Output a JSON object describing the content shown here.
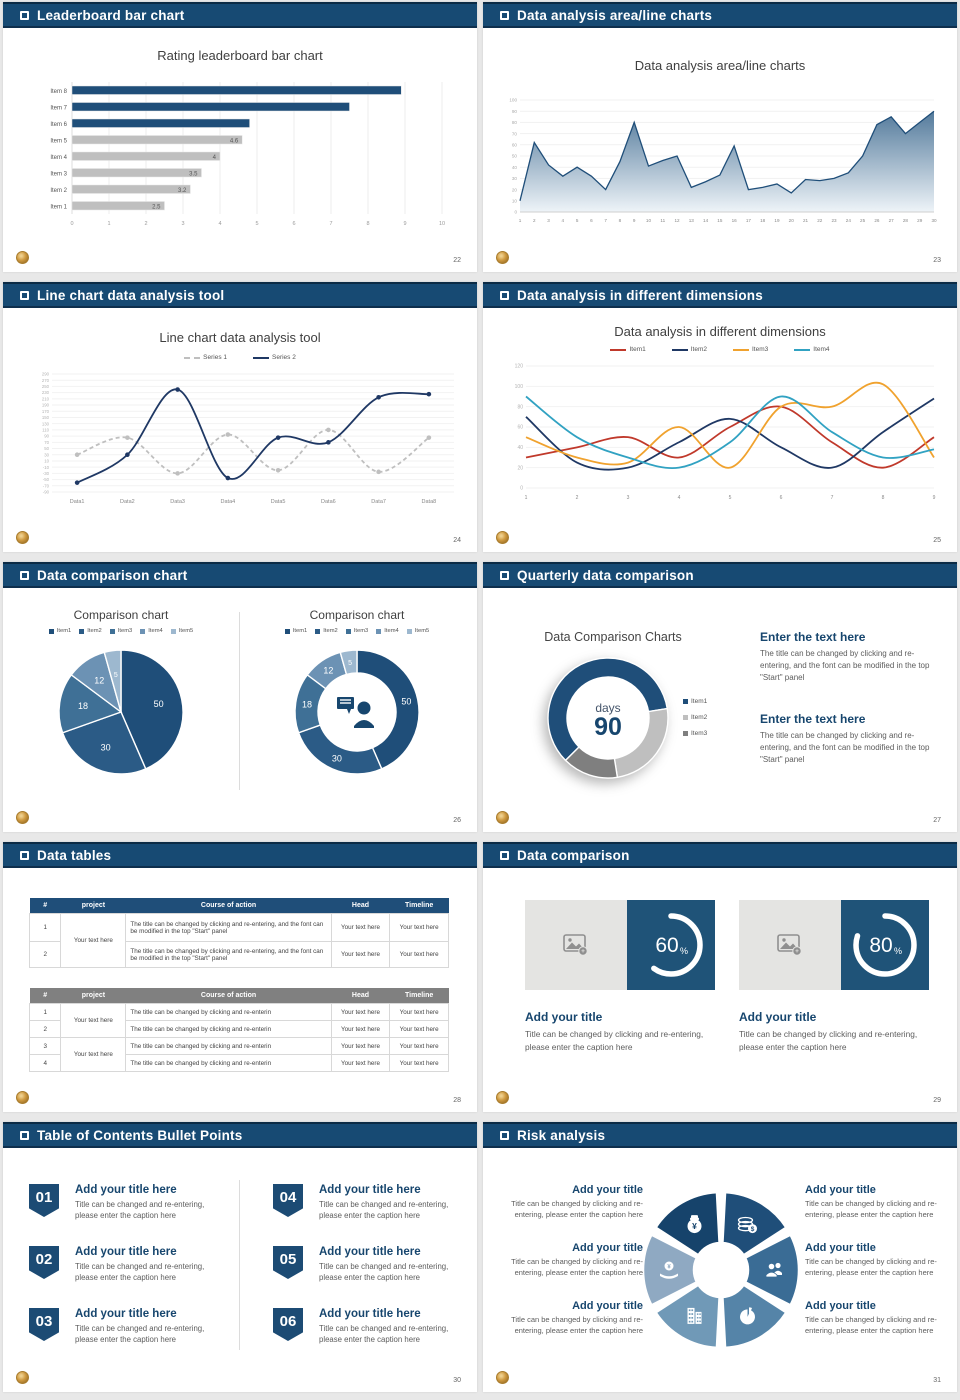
{
  "canvas": {
    "bg": "#e8e8e8"
  },
  "theme": {
    "navy": "#174A73",
    "chart_navy": "#1F4E79",
    "bar_gray": "#BFBFBF",
    "gray_header": "#808080",
    "gold_logo": "#CF9A41"
  },
  "slides": [
    {
      "header": "Leaderboard bar chart",
      "page": "22",
      "chart_title": "Rating leaderboard bar chart"
    },
    {
      "header": "Data analysis area/line charts",
      "page": "23",
      "chart_title": "Data analysis area/line charts"
    },
    {
      "header": "Line chart data analysis tool",
      "page": "24",
      "chart_title": "Line chart data analysis tool"
    },
    {
      "header": "Data analysis in different dimensions",
      "page": "25",
      "chart_title": "Data analysis in different dimensions"
    },
    {
      "header": "Data comparison chart",
      "page": "26",
      "left_title": "Comparison chart",
      "right_title": "Comparison chart"
    },
    {
      "header": "Quarterly data comparison",
      "page": "27",
      "chart_title": "Data Comparison Charts",
      "center_label": "days",
      "center_value": "90",
      "text_blocks": [
        {
          "title": "Enter the text here",
          "body": "The title can be changed by clicking and re-entering, and the font can be modified in the top \"Start\" panel"
        },
        {
          "title": "Enter the text here",
          "body": "The title can be changed by clicking and re-entering, and the font can be modified in the top \"Start\" panel"
        }
      ]
    },
    {
      "header": "Data tables",
      "page": "28",
      "tables": [
        {
          "style": "navy",
          "columns": [
            "#",
            "project",
            "Course of action",
            "Head",
            "Timeline"
          ],
          "project_text": "Your text here",
          "rows": [
            {
              "num": "1",
              "course": "The title can be changed by clicking and re-entering, and the font can be modified in the top \"Start\" panel",
              "head": "Your text here",
              "timeline": "Your text here"
            },
            {
              "num": "2",
              "course": "The title can be changed by clicking and re-entering, and the font can be modified in the top \"Start\" panel",
              "head": "Your text here",
              "timeline": "Your text here"
            }
          ]
        },
        {
          "style": "gray",
          "columns": [
            "#",
            "project",
            "Course of action",
            "Head",
            "Timeline"
          ],
          "project_text": "Your text here",
          "rows": [
            {
              "num": "1",
              "course": "The title can be changed by clicking and re-enterin",
              "head": "Your text here",
              "timeline": "Your text here"
            },
            {
              "num": "2",
              "course": "The title can be changed by clicking and re-enterin",
              "head": "Your text here",
              "timeline": "Your text here"
            },
            {
              "num": "3",
              "course": "The title can be changed by clicking and re-enterin",
              "head": "Your text here",
              "timeline": "Your text here"
            },
            {
              "num": "4",
              "course": "The title can be changed by clicking and re-enterin",
              "head": "Your text here",
              "timeline": "Your text here"
            }
          ]
        }
      ]
    },
    {
      "header": "Data comparison",
      "page": "29",
      "panels": [
        {
          "percent": "60",
          "percent_sign": "%",
          "title": "Add your title",
          "caption": "Title can be changed by clicking and re-entering, please enter the caption here"
        },
        {
          "percent": "80",
          "percent_sign": "%",
          "title": "Add your title",
          "caption": "Title can be changed by clicking and re-entering, please enter the caption here"
        }
      ]
    },
    {
      "header": "Table of Contents Bullet Points",
      "page": "30",
      "items": [
        {
          "num": "01",
          "title": "Add your title here",
          "caption": "Title can be changed and re-entering, please enter the caption here"
        },
        {
          "num": "02",
          "title": "Add your title here",
          "caption": "Title can be changed and re-entering, please enter the caption here"
        },
        {
          "num": "03",
          "title": "Add your title here",
          "caption": "Title can be changed and re-entering, please enter the caption here"
        },
        {
          "num": "04",
          "title": "Add your title here",
          "caption": "Title can be changed and re-entering, please enter the caption here"
        },
        {
          "num": "05",
          "title": "Add your title here",
          "caption": "Title can be changed and re-entering, please enter the caption here"
        },
        {
          "num": "06",
          "title": "Add your title here",
          "caption": "Title can be changed and re-entering, please enter the caption here"
        }
      ]
    },
    {
      "header": "Risk analysis",
      "page": "31",
      "blocks": [
        {
          "title": "Add your title",
          "caption": "Title can be changed by clicking and re-entering, please enter the caption here"
        },
        {
          "title": "Add your title",
          "caption": "Title can be changed by clicking and re-entering, please enter the caption here"
        },
        {
          "title": "Add your title",
          "caption": "Title can be changed by clicking and re-entering, please enter the caption here"
        },
        {
          "title": "Add your title",
          "caption": "Title can be changed by clicking and re-entering, please enter the caption here"
        },
        {
          "title": "Add your title",
          "caption": "Title can be changed by clicking and re-entering, please enter the caption here"
        },
        {
          "title": "Add your title",
          "caption": "Title can be changed by clicking and re-entering, please enter the caption here"
        }
      ],
      "icons": [
        "money-bag",
        "coins",
        "people",
        "pie",
        "building",
        "hand-coin"
      ]
    }
  ],
  "chart_data": [
    {
      "type": "bar",
      "orientation": "horizontal",
      "title": "Rating leaderboard bar chart",
      "categories": [
        "Item 8",
        "Item 7",
        "Item 6",
        "Item 5",
        "Item 4",
        "Item 3",
        "Item 2",
        "Item 1"
      ],
      "values": [
        8.9,
        7.5,
        4.8,
        4.6,
        4,
        3.5,
        3.2,
        2.5
      ],
      "data_labels": [
        "",
        "",
        "",
        "4.6",
        "4",
        "3.5",
        "3.2",
        "2.5"
      ],
      "bar_colors": [
        "#1F4E79",
        "#1F4E79",
        "#1F4E79",
        "#BFBFBF",
        "#BFBFBF",
        "#BFBFBF",
        "#BFBFBF",
        "#BFBFBF"
      ],
      "xlim": [
        0,
        10
      ],
      "xticks": [
        0,
        1,
        2,
        3,
        4,
        5,
        6,
        7,
        8,
        9,
        10
      ],
      "grid": true
    },
    {
      "type": "area",
      "title": "Data analysis area/line charts",
      "x": [
        1,
        2,
        3,
        4,
        5,
        6,
        7,
        8,
        9,
        10,
        11,
        12,
        13,
        14,
        15,
        16,
        17,
        18,
        19,
        20,
        21,
        22,
        23,
        24,
        25,
        26,
        27,
        28,
        29,
        30
      ],
      "values": [
        10,
        62,
        42,
        32,
        40,
        32,
        20,
        45,
        80,
        41,
        46,
        50,
        22,
        27,
        33,
        59,
        20,
        22,
        25,
        17,
        29,
        28,
        30,
        35,
        50,
        78,
        85,
        70,
        80,
        90
      ],
      "ylim": [
        0,
        100
      ],
      "ytick_step": 10,
      "line_color": "#1F4E79",
      "fill_top": "#4A7396",
      "fill_bottom": "#EDF3F8",
      "grid": true
    },
    {
      "type": "line",
      "title": "Line chart data analysis tool",
      "categories": [
        "Data1",
        "Data2",
        "Data3",
        "Data4",
        "Data5",
        "Data6",
        "Data7",
        "Data8"
      ],
      "series": [
        {
          "name": "Series 1",
          "color": "#BFBFBF",
          "style": "dashed",
          "values": [
            30,
            85,
            -30,
            95,
            -20,
            110,
            -25,
            85
          ]
        },
        {
          "name": "Series 2",
          "color": "#1F3864",
          "style": "solid",
          "values": [
            -60,
            30,
            240,
            -45,
            85,
            70,
            215,
            225
          ]
        }
      ],
      "ylim": [
        -90,
        290
      ],
      "ytick_step": 20,
      "grid": true,
      "legend_position": "top"
    },
    {
      "type": "line",
      "title": "Data analysis in different dimensions",
      "x": [
        1,
        2,
        3,
        4,
        5,
        6,
        7,
        8,
        9
      ],
      "series": [
        {
          "name": "Item1",
          "color": "#C0392B",
          "values": [
            30,
            40,
            50,
            30,
            60,
            80,
            45,
            20,
            50
          ]
        },
        {
          "name": "Item2",
          "color": "#1F3864",
          "values": [
            70,
            25,
            20,
            45,
            68,
            40,
            20,
            55,
            88
          ]
        },
        {
          "name": "Item3",
          "color": "#F0A22E",
          "values": [
            50,
            30,
            25,
            60,
            20,
            80,
            80,
            102,
            30
          ]
        },
        {
          "name": "Item4",
          "color": "#31A2C2",
          "values": [
            90,
            50,
            30,
            20,
            45,
            90,
            55,
            30,
            38
          ]
        }
      ],
      "ylim": [
        0,
        120
      ],
      "ytick_step": 20,
      "grid": true,
      "legend_position": "top"
    },
    {
      "type": "pie",
      "title": "Comparison chart",
      "labels": [
        "Item1",
        "Item2",
        "Item3",
        "Item4",
        "Item5"
      ],
      "values": [
        50,
        30,
        18,
        12,
        5
      ],
      "colors": [
        "#1F4E79",
        "#2B5B86",
        "#3F7096",
        "#6C92B4",
        "#9DB8CF"
      ]
    },
    {
      "type": "donut",
      "title": "Comparison chart",
      "labels": [
        "Item1",
        "Item2",
        "Item3",
        "Item4",
        "Item5"
      ],
      "values": [
        50,
        30,
        18,
        12,
        5
      ],
      "colors": [
        "#1F4E79",
        "#2B5B86",
        "#3F7096",
        "#6C92B4",
        "#9DB8CF"
      ],
      "center_icon": "person-speech"
    },
    {
      "type": "donut",
      "title": "Data Comparison Charts",
      "labels": [
        "Item1",
        "Item2",
        "Item3"
      ],
      "values": [
        60,
        25,
        15
      ],
      "colors": [
        "#1F4E79",
        "#BFBFBF",
        "#7F7F7F"
      ],
      "start_angle": 225,
      "center_label": "days",
      "center_value": "90"
    }
  ]
}
